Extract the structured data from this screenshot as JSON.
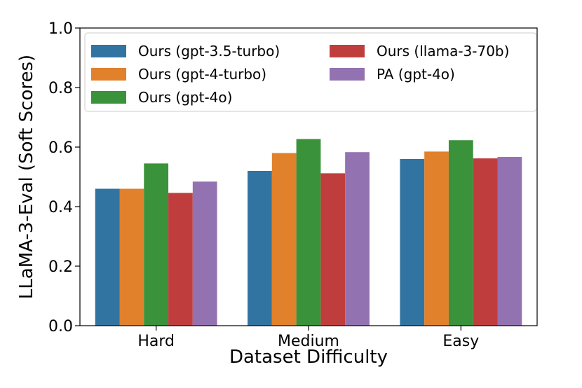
{
  "chart_data": {
    "type": "bar",
    "xlabel": "Dataset Difficulty",
    "ylabel": "LLaMA-3-Eval (Soft Scores)",
    "categories": [
      "Hard",
      "Medium",
      "Easy"
    ],
    "ylim": [
      0,
      1.0
    ],
    "yticks": [
      "0.0",
      "0.2",
      "0.4",
      "0.6",
      "0.8",
      "1.0"
    ],
    "grid": false,
    "legend_position": "top",
    "series": [
      {
        "name": "Ours (gpt-3.5-turbo)",
        "color": "#3274a1",
        "values": [
          0.46,
          0.52,
          0.56
        ]
      },
      {
        "name": "Ours (gpt-4-turbo)",
        "color": "#e1812c",
        "values": [
          0.46,
          0.58,
          0.585
        ]
      },
      {
        "name": "Ours (gpt-4o)",
        "color": "#3a923a",
        "values": [
          0.545,
          0.627,
          0.623
        ]
      },
      {
        "name": "Ours (llama-3-70b)",
        "color": "#c03d3e",
        "values": [
          0.446,
          0.512,
          0.562
        ]
      },
      {
        "name": "PA (gpt-4o)",
        "color": "#9372b2",
        "values": [
          0.484,
          0.583,
          0.567
        ]
      }
    ]
  }
}
